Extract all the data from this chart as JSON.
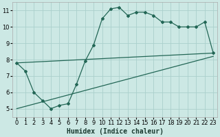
{
  "xlabel": "Humidex (Indice chaleur)",
  "bg_color": "#cce8e4",
  "grid_color": "#aad0cc",
  "line_color": "#226655",
  "xlim": [
    -0.5,
    23.5
  ],
  "ylim": [
    4.5,
    11.5
  ],
  "xticks": [
    0,
    1,
    2,
    3,
    4,
    5,
    6,
    7,
    8,
    9,
    10,
    11,
    12,
    13,
    14,
    15,
    16,
    17,
    18,
    19,
    20,
    21,
    22,
    23
  ],
  "yticks": [
    5,
    6,
    7,
    8,
    9,
    10,
    11
  ],
  "line1_x": [
    0,
    1,
    2,
    3,
    4,
    5,
    6,
    7,
    8,
    9,
    10,
    11,
    12,
    13,
    14,
    15,
    16,
    17,
    18,
    19,
    20,
    21,
    22,
    23
  ],
  "line1_y": [
    7.8,
    7.3,
    6.0,
    5.5,
    5.0,
    5.2,
    5.3,
    6.5,
    7.9,
    8.9,
    10.5,
    11.1,
    11.2,
    10.7,
    10.9,
    10.9,
    10.7,
    10.3,
    10.3,
    10.0,
    10.0,
    10.0,
    10.3,
    8.4
  ],
  "line2_x": [
    0,
    23
  ],
  "line2_y": [
    7.8,
    8.4
  ],
  "line3_x": [
    0,
    23
  ],
  "line3_y": [
    5.0,
    8.2
  ],
  "xlabel_fontsize": 7,
  "tick_fontsize": 6
}
